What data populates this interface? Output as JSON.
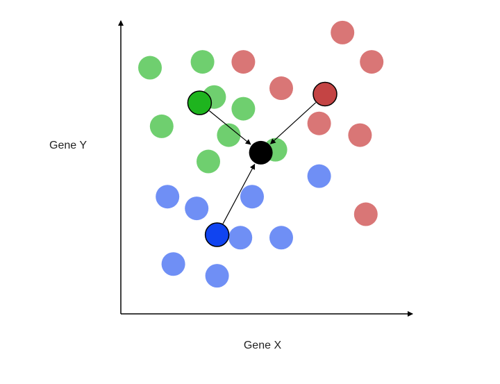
{
  "chart_data": {
    "type": "scatter",
    "title": "",
    "xlabel": "Gene X",
    "ylabel": "Gene Y",
    "xlim": [
      0,
      100
    ],
    "ylim": [
      0,
      100
    ],
    "grid": false,
    "legend": "none",
    "series": [
      {
        "color": "#6fcf6f",
        "points": [
          [
            10,
            84
          ],
          [
            28,
            86
          ],
          [
            32,
            74
          ],
          [
            42,
            70
          ],
          [
            14,
            64
          ],
          [
            37,
            61
          ],
          [
            53,
            56
          ],
          [
            30,
            52
          ]
        ]
      },
      {
        "color": "#d97676",
        "points": [
          [
            76,
            96
          ],
          [
            42,
            86
          ],
          [
            86,
            86
          ],
          [
            55,
            77
          ],
          [
            68,
            65
          ],
          [
            82,
            61
          ],
          [
            84,
            34
          ]
        ]
      },
      {
        "color": "#6f8ff5",
        "points": [
          [
            16,
            40
          ],
          [
            68,
            47
          ],
          [
            45,
            40
          ],
          [
            26,
            36
          ],
          [
            41,
            26
          ],
          [
            55,
            26
          ],
          [
            18,
            17
          ],
          [
            33,
            13
          ]
        ]
      }
    ],
    "highlighted": [
      {
        "name": "green-centroid",
        "color": "#1eb41e",
        "x": 27,
        "y": 72
      },
      {
        "name": "red-centroid",
        "color": "#c44444",
        "x": 70,
        "y": 75
      },
      {
        "name": "blue-centroid",
        "color": "#1044f0",
        "x": 33,
        "y": 27
      }
    ],
    "query_point": {
      "color": "#000000",
      "x": 48,
      "y": 55
    },
    "arrows": [
      {
        "from": "green-centroid",
        "to": "query"
      },
      {
        "from": "red-centroid",
        "to": "query"
      },
      {
        "from": "blue-centroid",
        "to": "query"
      }
    ]
  }
}
